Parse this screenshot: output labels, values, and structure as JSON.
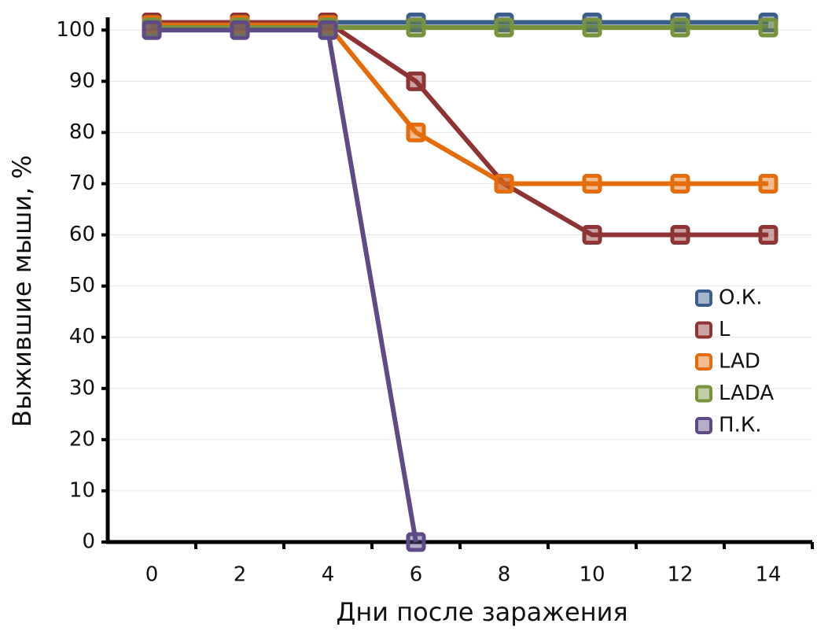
{
  "chart_data": {
    "type": "line",
    "y_label": "Выжившие мыши, %",
    "x_label": "Дни после заражения",
    "categories": [
      "0",
      "2",
      "4",
      "6",
      "8",
      "10",
      "12",
      "14"
    ],
    "series": [
      {
        "name": "О.К.",
        "color": "#3b5e8c",
        "values": [
          101.5,
          101.5,
          101.5,
          101.5,
          101.5,
          101.5,
          101.5,
          101.5
        ]
      },
      {
        "name": "L",
        "color": "#8e3434",
        "values": [
          101.5,
          101.5,
          101.5,
          90,
          70,
          60,
          60,
          60
        ]
      },
      {
        "name": "LAD",
        "color": "#e46c0a",
        "values": [
          101,
          101,
          101,
          80,
          70,
          70,
          70,
          70
        ]
      },
      {
        "name": "LADA",
        "color": "#77933c",
        "values": [
          100.5,
          100.5,
          100.5,
          100.5,
          100.5,
          100.5,
          100.5,
          100.5
        ]
      },
      {
        "name": "П.К.",
        "color": "#5e4a86",
        "values": [
          100,
          100,
          100,
          0,
          null,
          null,
          null,
          null
        ]
      }
    ],
    "ylim": [
      0,
      102.5
    ],
    "yticks": [
      0,
      10,
      20,
      30,
      40,
      50,
      60,
      70,
      80,
      90,
      100
    ],
    "grid": true,
    "legend": "right"
  }
}
